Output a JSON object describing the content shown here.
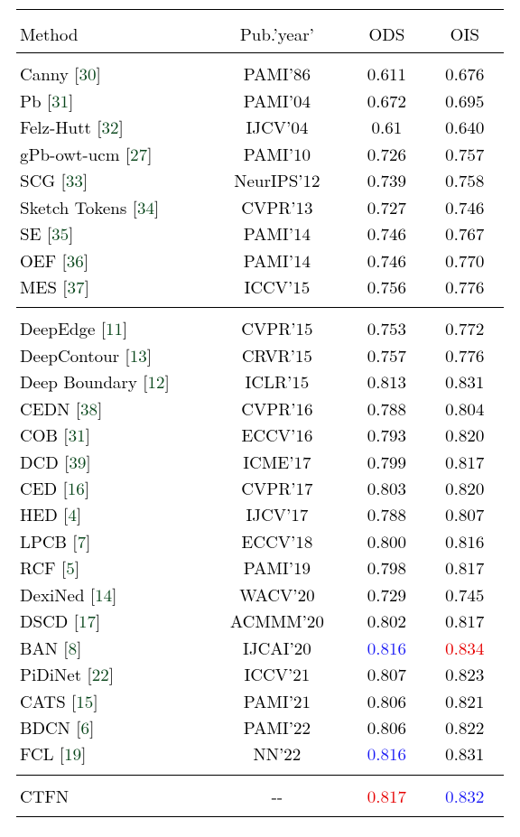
{
  "colors": {
    "cite": "#0a471c",
    "blue": "#1a1af5",
    "red": "#e60000",
    "rule": "#000000",
    "bg": "#ffffff",
    "text": "#000000"
  },
  "typography": {
    "font_family": "CMU Serif / Times",
    "font_size_pt": 14
  },
  "layout": {
    "column_widths_pct": [
      39,
      29,
      16,
      16
    ],
    "align": [
      "left",
      "center",
      "center",
      "center"
    ]
  },
  "header": {
    "method": "Method",
    "pub": "Pub.’year’",
    "ods": "ODS",
    "ois": "OIS"
  },
  "groups": [
    {
      "rows": [
        {
          "method": "Canny",
          "cite": "30",
          "pub": "PAMI’86",
          "ods": "0.611",
          "ois": "0.676"
        },
        {
          "method": "Pb",
          "cite": "31",
          "pub": "PAMI’04",
          "ods": "0.672",
          "ois": "0.695"
        },
        {
          "method": "Felz-Hutt",
          "cite": "32",
          "pub": "IJCV’04",
          "ods": "0.61",
          "ois": "0.640"
        },
        {
          "method": "gPb-owt-ucm",
          "cite": "27",
          "pub": "PAMI’10",
          "ods": "0.726",
          "ois": "0.757"
        },
        {
          "method": "SCG",
          "cite": "33",
          "pub": "NeurIPS’12",
          "ods": "0.739",
          "ois": "0.758"
        },
        {
          "method": "Sketch Tokens",
          "cite": "34",
          "pub": "CVPR’13",
          "ods": "0.727",
          "ois": "0.746"
        },
        {
          "method": "SE",
          "cite": "35",
          "pub": "PAMI’14",
          "ods": "0.746",
          "ois": "0.767"
        },
        {
          "method": "OEF",
          "cite": "36",
          "pub": "PAMI’14",
          "ods": "0.746",
          "ois": "0.770"
        },
        {
          "method": "MES",
          "cite": "37",
          "pub": "ICCV’15",
          "ods": "0.756",
          "ois": "0.776"
        }
      ]
    },
    {
      "rows": [
        {
          "method": "DeepEdge",
          "cite": "11",
          "pub": "CVPR’15",
          "ods": "0.753",
          "ois": "0.772"
        },
        {
          "method": "DeepContour",
          "cite": "13",
          "pub": "CRVR’15",
          "ods": "0.757",
          "ois": "0.776"
        },
        {
          "method": "Deep Boundary",
          "cite": "12",
          "pub": "ICLR’15",
          "ods": "0.813",
          "ois": "0.831"
        },
        {
          "method": "CEDN",
          "cite": "38",
          "pub": "CVPR’16",
          "ods": "0.788",
          "ois": "0.804"
        },
        {
          "method": "COB",
          "cite": "31",
          "pub": "ECCV’16",
          "ods": "0.793",
          "ois": "0.820"
        },
        {
          "method": "DCD",
          "cite": "39",
          "pub": "ICME’17",
          "ods": "0.799",
          "ois": "0.817"
        },
        {
          "method": "CED",
          "cite": "16",
          "pub": "CVPR’17",
          "ods": "0.803",
          "ois": "0.820"
        },
        {
          "method": "HED",
          "cite": "4",
          "pub": "IJCV’17",
          "ods": "0.788",
          "ois": "0.807"
        },
        {
          "method": "LPCB",
          "cite": "7",
          "pub": "ECCV’18",
          "ods": "0.800",
          "ois": "0.816"
        },
        {
          "method": "RCF",
          "cite": "5",
          "pub": "PAMI’19",
          "ods": "0.798",
          "ois": "0.817"
        },
        {
          "method": "DexiNed",
          "cite": "14",
          "pub": "WACV’20",
          "ods": "0.729",
          "ois": "0.745"
        },
        {
          "method": "DSCD",
          "cite": "17",
          "pub": "ACMMM’20",
          "ods": "0.802",
          "ois": "0.817"
        },
        {
          "method": "BAN",
          "cite": "8",
          "pub": "IJCAI’20",
          "ods": "0.816",
          "ods_color": "blue",
          "ois": "0.834",
          "ois_color": "red"
        },
        {
          "method": "PiDiNet",
          "cite": "22",
          "pub": "ICCV’21",
          "ods": "0.807",
          "ois": "0.823"
        },
        {
          "method": "CATS",
          "cite": "15",
          "pub": "PAMI’21",
          "ods": "0.806",
          "ois": "0.821"
        },
        {
          "method": "BDCN",
          "cite": "6",
          "pub": "PAMI’22",
          "ods": "0.806",
          "ois": "0.822"
        },
        {
          "method": "FCL",
          "cite": "19",
          "pub": "NN’22",
          "ods": "0.816",
          "ods_color": "blue",
          "ois": "0.831"
        }
      ]
    },
    {
      "rows": [
        {
          "method": "CTFN",
          "cite": "",
          "pub": "--",
          "ods": "0.817",
          "ods_color": "red",
          "ois": "0.832",
          "ois_color": "blue"
        }
      ]
    }
  ]
}
